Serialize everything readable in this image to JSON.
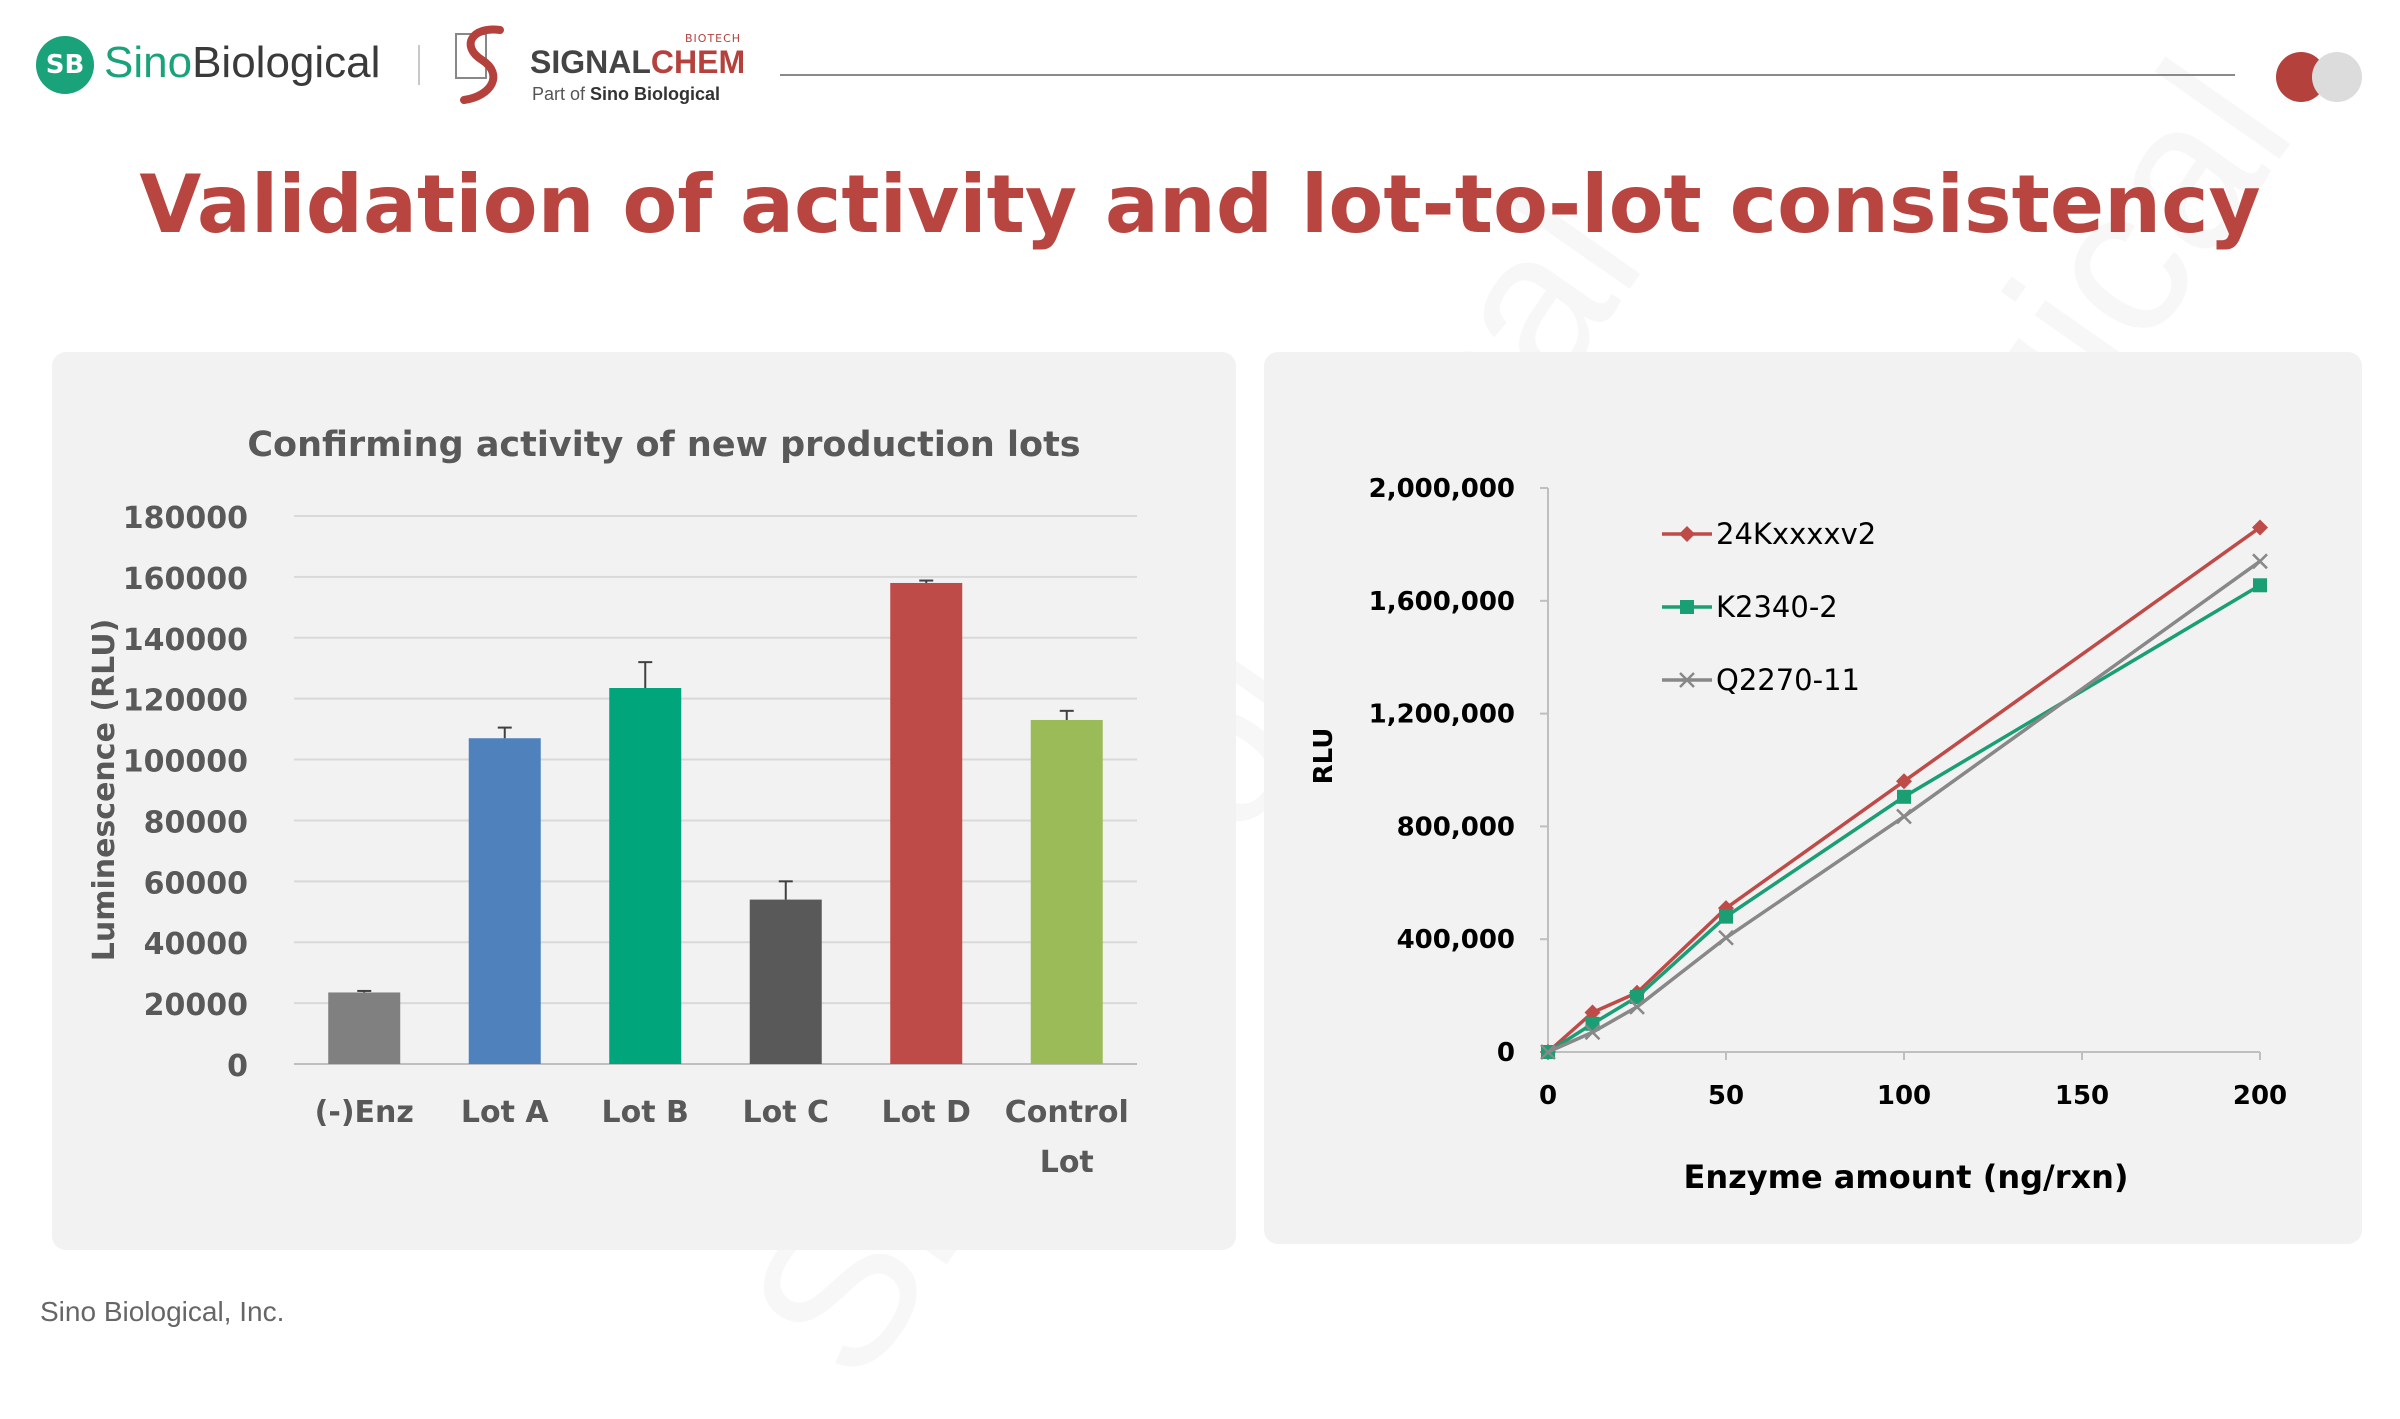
{
  "header": {
    "sino_logo_text": "SB",
    "sino_name_a": "Sino",
    "sino_name_b": "Biological",
    "signalchem_tag": "BIOTECH",
    "signalchem_a": "SIGNAL",
    "signalchem_b": "CHEM",
    "signalchem_sub_a": "Part of ",
    "signalchem_sub_b": "Sino Biological"
  },
  "title": "Validation of activity and lot-to-lot consistency",
  "footer": "Sino Biological, Inc.",
  "watermark": "Sino Biological",
  "colors": {
    "accent": "#b8453f",
    "brand_green": "#1aa37a",
    "panel_bg": "#f2f2f2"
  },
  "chart_data": [
    {
      "type": "bar",
      "title": "Confirming activity of new production lots",
      "xlabel": "",
      "ylabel": "Luminescence (RLU)",
      "ylim": [
        0,
        180000
      ],
      "yticks": [
        "0",
        "20000",
        "40000",
        "60000",
        "80000",
        "100000",
        "120000",
        "140000",
        "160000",
        "180000"
      ],
      "categories": [
        "(-)Enz",
        "Lot A",
        "Lot B",
        "Lot C",
        "Lot D",
        "Control Lot"
      ],
      "category_lines": [
        [
          "(-)Enz"
        ],
        [
          "Lot A"
        ],
        [
          "Lot B"
        ],
        [
          "Lot C"
        ],
        [
          "Lot D"
        ],
        [
          "Control",
          "Lot"
        ]
      ],
      "values": [
        23500,
        107000,
        123500,
        54000,
        158000,
        113000
      ],
      "errors": [
        500,
        3500,
        8500,
        6000,
        800,
        3000
      ],
      "bar_colors": [
        "#808080",
        "#4f81bd",
        "#00a57c",
        "#595959",
        "#be4b48",
        "#9bbb59"
      ],
      "grid": true
    },
    {
      "type": "line",
      "title": "",
      "xlabel": "Enzyme amount (ng/rxn)",
      "ylabel": "RLU",
      "xlim": [
        0,
        200
      ],
      "ylim": [
        0,
        2000000
      ],
      "xticks": [
        "0",
        "50",
        "100",
        "150",
        "200"
      ],
      "yticks": [
        "0",
        "400,000",
        "800,000",
        "1,200,000",
        "1,600,000",
        "2,000,000"
      ],
      "legend": "top-left",
      "x": [
        0,
        12.5,
        25,
        50,
        100,
        200
      ],
      "series": [
        {
          "name": "24Kxxxxv2",
          "color": "#be4b48",
          "marker": "diamond",
          "values": [
            0,
            140000,
            210000,
            510000,
            960000,
            1860000
          ]
        },
        {
          "name": "K2340-2",
          "color": "#1a9e74",
          "marker": "square",
          "values": [
            0,
            100000,
            195000,
            480000,
            905000,
            1655000
          ]
        },
        {
          "name": "Q2270-11",
          "color": "#888888",
          "marker": "x",
          "values": [
            0,
            70000,
            160000,
            405000,
            835000,
            1740000
          ]
        }
      ]
    }
  ]
}
